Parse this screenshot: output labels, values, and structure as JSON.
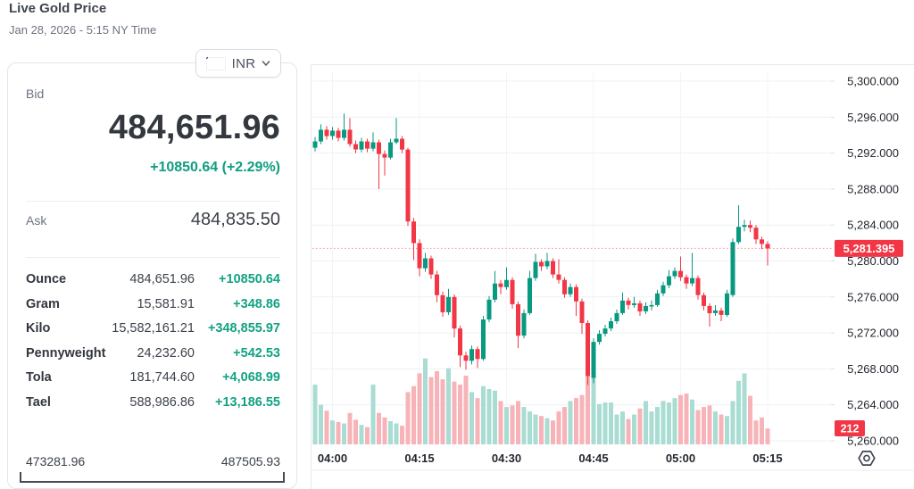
{
  "header": {
    "title": "Live Gold Price",
    "subtitle": "Jan 28, 2026 - 5:15 NY Time"
  },
  "currency_selector": {
    "code": "INR",
    "flag": "india-flag"
  },
  "quote": {
    "bid_label": "Bid",
    "bid": "484,651.96",
    "change": "+10850.64 (+2.29%)",
    "ask_label": "Ask",
    "ask": "484,835.50"
  },
  "units_table": {
    "rows": [
      {
        "label": "Ounce",
        "value": "484,651.96",
        "change": "+10850.64"
      },
      {
        "label": "Gram",
        "value": "15,581.91",
        "change": "+348.86"
      },
      {
        "label": "Kilo",
        "value": "15,582,161.21",
        "change": "+348,855.97"
      },
      {
        "label": "Pennyweight",
        "value": "24,232.60",
        "change": "+542.53"
      },
      {
        "label": "Tola",
        "value": "181,744.60",
        "change": "+4,068.99"
      },
      {
        "label": "Tael",
        "value": "588,986.86",
        "change": "+13,186.55"
      }
    ]
  },
  "range": {
    "low": "473281.96",
    "high": "487505.93"
  },
  "colors": {
    "up": "#089981",
    "down": "#f23645",
    "volume_up": "#a9dcd2",
    "volume_down": "#f7b3b8",
    "badge": "#f23645",
    "grid": "#eef1f5",
    "axis_text": "#23272f",
    "accent_green": "#0f9e80"
  },
  "chart_data": {
    "type": "candlestick+volume",
    "title": "Gold price intraday (INR per ounce, scale in hundreds)",
    "x_ticks": [
      "04:00",
      "04:15",
      "04:30",
      "04:45",
      "05:00",
      "05:15"
    ],
    "x_tick_indices": [
      3,
      18,
      33,
      48,
      63,
      78
    ],
    "start_time": "03:57",
    "interval_minutes": 1,
    "y_axis_values": [
      5300,
      5296,
      5292,
      5288,
      5284,
      5280,
      5276,
      5272,
      5268,
      5264,
      5260
    ],
    "y_axis_labels": [
      "5,300.000",
      "5,296.000",
      "5,292.000",
      "5,288.000",
      "5,284.000",
      "5,280.000",
      "5,276.000",
      "5,272.000",
      "5,268.000",
      "5,264.000",
      "5,260.000"
    ],
    "ylim": [
      5258,
      5301
    ],
    "last_price": 5281.395,
    "last_price_label": "5,281.395",
    "last_volume_label": "212",
    "candles_ohlc": [
      [
        5292.6,
        5293.8,
        5292.2,
        5293.3
      ],
      [
        5293.3,
        5295.2,
        5293.0,
        5294.6
      ],
      [
        5294.6,
        5295.0,
        5293.5,
        5293.9
      ],
      [
        5293.9,
        5294.9,
        5293.5,
        5294.5
      ],
      [
        5294.5,
        5294.8,
        5293.3,
        5293.7
      ],
      [
        5293.7,
        5296.4,
        5293.4,
        5294.6
      ],
      [
        5294.6,
        5295.9,
        5292.7,
        5293.0
      ],
      [
        5293.0,
        5293.4,
        5292.0,
        5292.4
      ],
      [
        5292.4,
        5293.7,
        5292.1,
        5293.3
      ],
      [
        5293.3,
        5293.6,
        5292.1,
        5292.5
      ],
      [
        5292.5,
        5294.3,
        5292.2,
        5293.2
      ],
      [
        5293.2,
        5293.5,
        5288.0,
        5291.9
      ],
      [
        5291.9,
        5292.3,
        5289.5,
        5291.5
      ],
      [
        5291.5,
        5293.6,
        5291.3,
        5293.2
      ],
      [
        5293.2,
        5295.9,
        5293.0,
        5293.6
      ],
      [
        5293.6,
        5293.9,
        5292.0,
        5292.4
      ],
      [
        5292.4,
        5292.6,
        5283.9,
        5284.4
      ],
      [
        5284.4,
        5284.8,
        5280.1,
        5282.0
      ],
      [
        5282.0,
        5282.4,
        5278.3,
        5279.2
      ],
      [
        5279.2,
        5280.9,
        5278.8,
        5280.3
      ],
      [
        5280.3,
        5280.6,
        5278.0,
        5278.5
      ],
      [
        5278.5,
        5278.9,
        5275.4,
        5276.2
      ],
      [
        5276.2,
        5276.6,
        5273.8,
        5274.3
      ],
      [
        5274.3,
        5276.9,
        5274.0,
        5276.0
      ],
      [
        5276.0,
        5276.3,
        5271.5,
        5272.5
      ],
      [
        5272.5,
        5272.8,
        5268.2,
        5269.5
      ],
      [
        5269.5,
        5269.9,
        5267.9,
        5268.9
      ],
      [
        5268.9,
        5270.6,
        5268.5,
        5270.2
      ],
      [
        5270.2,
        5270.5,
        5268.1,
        5269.1
      ],
      [
        5269.1,
        5273.9,
        5268.9,
        5273.5
      ],
      [
        5273.5,
        5276.1,
        5273.2,
        5275.7
      ],
      [
        5275.7,
        5278.9,
        5275.4,
        5277.5
      ],
      [
        5277.5,
        5277.9,
        5276.3,
        5277.1
      ],
      [
        5277.1,
        5279.3,
        5276.8,
        5277.9
      ],
      [
        5277.9,
        5278.2,
        5274.7,
        5275.2
      ],
      [
        5275.2,
        5275.5,
        5270.3,
        5271.7
      ],
      [
        5271.7,
        5274.6,
        5271.4,
        5274.2
      ],
      [
        5274.2,
        5278.9,
        5274.0,
        5278.1
      ],
      [
        5278.1,
        5280.8,
        5277.8,
        5279.9
      ],
      [
        5279.9,
        5280.2,
        5278.9,
        5279.4
      ],
      [
        5279.4,
        5280.9,
        5279.1,
        5280.0
      ],
      [
        5280.0,
        5280.3,
        5278.1,
        5278.5
      ],
      [
        5278.5,
        5280.2,
        5277.5,
        5277.9
      ],
      [
        5277.9,
        5278.2,
        5275.9,
        5276.3
      ],
      [
        5276.3,
        5277.5,
        5276.0,
        5277.1
      ],
      [
        5277.1,
        5277.4,
        5273.9,
        5275.5
      ],
      [
        5275.5,
        5275.8,
        5271.9,
        5273.1
      ],
      [
        5273.1,
        5273.4,
        5266.2,
        5267.2
      ],
      [
        5267.0,
        5271.4,
        5266.4,
        5271.0
      ],
      [
        5271.0,
        5272.3,
        5270.7,
        5271.9
      ],
      [
        5271.9,
        5272.9,
        5271.6,
        5272.5
      ],
      [
        5272.5,
        5273.7,
        5272.2,
        5273.3
      ],
      [
        5273.3,
        5274.6,
        5273.0,
        5274.2
      ],
      [
        5274.2,
        5276.5,
        5274.0,
        5275.6
      ],
      [
        5275.6,
        5275.9,
        5274.6,
        5275.1
      ],
      [
        5275.1,
        5276.0,
        5274.8,
        5275.3
      ],
      [
        5275.3,
        5275.6,
        5273.9,
        5274.4
      ],
      [
        5274.4,
        5275.4,
        5274.1,
        5275.0
      ],
      [
        5275.0,
        5275.6,
        5274.5,
        5275.1
      ],
      [
        5275.1,
        5276.8,
        5274.9,
        5276.4
      ],
      [
        5276.4,
        5277.7,
        5276.1,
        5277.3
      ],
      [
        5277.3,
        5279.0,
        5277.0,
        5278.3
      ],
      [
        5278.3,
        5279.3,
        5278.0,
        5278.9
      ],
      [
        5278.9,
        5280.5,
        5277.8,
        5278.2
      ],
      [
        5278.2,
        5278.5,
        5276.9,
        5277.5
      ],
      [
        5277.5,
        5280.9,
        5277.2,
        5278.1
      ],
      [
        5278.1,
        5278.4,
        5275.7,
        5276.2
      ],
      [
        5276.2,
        5276.5,
        5274.5,
        5275.0
      ],
      [
        5275.0,
        5275.3,
        5272.7,
        5274.2
      ],
      [
        5274.2,
        5275.1,
        5273.9,
        5274.5
      ],
      [
        5274.5,
        5274.8,
        5273.3,
        5274.0
      ],
      [
        5274.0,
        5276.8,
        5273.8,
        5276.4
      ],
      [
        5276.2,
        5282.5,
        5276.0,
        5282.1
      ],
      [
        5282.1,
        5286.2,
        5281.9,
        5283.8
      ],
      [
        5283.8,
        5284.6,
        5283.3,
        5284.0
      ],
      [
        5284.0,
        5284.5,
        5283.2,
        5283.7
      ],
      [
        5283.7,
        5284.0,
        5281.9,
        5282.4
      ],
      [
        5282.4,
        5282.7,
        5281.3,
        5281.9
      ],
      [
        5281.9,
        5282.2,
        5279.5,
        5281.4
      ]
    ],
    "volumes": [
      800,
      530,
      450,
      320,
      300,
      280,
      420,
      330,
      260,
      230,
      800,
      420,
      360,
      310,
      280,
      250,
      700,
      780,
      950,
      1150,
      900,
      980,
      870,
      1020,
      840,
      800,
      920,
      700,
      620,
      780,
      740,
      720,
      580,
      500,
      520,
      580,
      500,
      440,
      400,
      380,
      350,
      320,
      440,
      500,
      580,
      620,
      660,
      1170,
      950,
      540,
      560,
      560,
      400,
      440,
      340,
      400,
      480,
      580,
      440,
      500,
      580,
      560,
      620,
      660,
      680,
      600,
      460,
      500,
      520,
      440,
      400,
      380,
      580,
      850,
      950,
      650,
      320,
      360,
      212
    ]
  }
}
